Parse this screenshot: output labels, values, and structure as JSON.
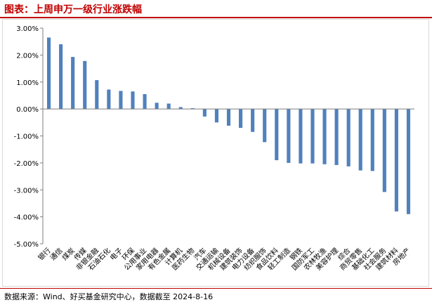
{
  "title": "图表：上周申万一级行业涨跌幅",
  "source": "数据来源：Wind、好买基金研究中心，数据截至 2024-8-16",
  "colors": {
    "bar": "#4f81bd",
    "title": "#c00000",
    "rule": "#c00000"
  },
  "chart_data": {
    "type": "bar",
    "title": "",
    "xlabel": "",
    "ylabel": "",
    "ylim": [
      -5.0,
      3.0
    ],
    "yticks": [
      "3.00%",
      "2.00%",
      "1.00%",
      "0.00%",
      "-1.00%",
      "-2.00%",
      "-3.00%",
      "-4.00%",
      "-5.00%"
    ],
    "ytick_values": [
      3,
      2,
      1,
      0,
      -1,
      -2,
      -3,
      -4,
      -5
    ],
    "grid": false,
    "legend": "none",
    "categories": [
      "银行",
      "通信",
      "煤炭",
      "传媒",
      "非银金融",
      "石油石化",
      "电子",
      "环保",
      "公用事业",
      "家用电器",
      "有色金属",
      "计算机",
      "医药生物",
      "汽车",
      "交通运输",
      "机械设备",
      "建筑装饰",
      "电力设备",
      "纺织服饰",
      "食品饮料",
      "轻工制造",
      "钢铁",
      "国防军工",
      "农林牧渔",
      "美容护理",
      "综合",
      "商贸零售",
      "基础化工",
      "社会服务",
      "建筑材料",
      "房地产"
    ],
    "values": [
      2.65,
      2.4,
      1.93,
      1.78,
      1.07,
      0.72,
      0.67,
      0.65,
      0.55,
      0.23,
      0.2,
      0.07,
      0.03,
      -0.28,
      -0.5,
      -0.62,
      -0.7,
      -0.85,
      -1.23,
      -1.9,
      -2.0,
      -2.02,
      -2.02,
      -2.05,
      -2.08,
      -2.13,
      -2.28,
      -2.3,
      -3.08,
      -3.8,
      -3.9
    ]
  }
}
